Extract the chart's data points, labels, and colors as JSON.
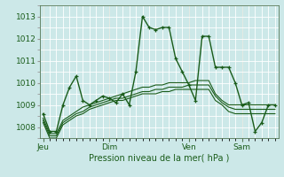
{
  "xlabel": "Pression niveau de la mer( hPa )",
  "ylim": [
    1007.5,
    1013.5
  ],
  "yticks": [
    1008,
    1009,
    1010,
    1011,
    1012,
    1013
  ],
  "bg_color": "#cce8e8",
  "grid_color": "#ffffff",
  "line_color": "#1a5c1a",
  "day_labels": [
    "Jeu",
    "Dim",
    "Ven",
    "Sam"
  ],
  "day_positions": [
    0,
    10,
    22,
    30
  ],
  "n_points": 36,
  "series0": [
    1008.6,
    1007.8,
    1007.8,
    1009.0,
    1009.8,
    1010.3,
    1009.2,
    1009.0,
    1009.2,
    1009.4,
    1009.3,
    1009.1,
    1009.5,
    1009.0,
    1010.5,
    1013.0,
    1012.5,
    1012.4,
    1012.5,
    1012.5,
    1011.1,
    1010.5,
    1009.9,
    1009.2,
    1012.1,
    1012.1,
    1010.7,
    1010.7,
    1010.7,
    1010.0,
    1009.0,
    1009.1,
    1007.8,
    1008.2,
    1009.0,
    1009.0
  ],
  "series1": [
    1008.4,
    1007.7,
    1007.7,
    1008.3,
    1008.5,
    1008.7,
    1008.9,
    1009.0,
    1009.1,
    1009.2,
    1009.3,
    1009.4,
    1009.5,
    1009.6,
    1009.7,
    1009.8,
    1009.8,
    1009.9,
    1009.9,
    1010.0,
    1010.0,
    1010.0,
    1010.0,
    1010.1,
    1010.1,
    1010.1,
    1009.5,
    1009.2,
    1009.0,
    1009.0,
    1009.0,
    1009.0,
    1009.0,
    1009.0,
    1009.0,
    1009.0
  ],
  "series2": [
    1008.3,
    1007.6,
    1007.6,
    1008.2,
    1008.4,
    1008.6,
    1008.7,
    1008.9,
    1009.0,
    1009.1,
    1009.2,
    1009.3,
    1009.3,
    1009.4,
    1009.5,
    1009.6,
    1009.6,
    1009.7,
    1009.7,
    1009.8,
    1009.8,
    1009.8,
    1009.9,
    1009.9,
    1009.9,
    1009.9,
    1009.4,
    1009.1,
    1008.9,
    1008.8,
    1008.8,
    1008.8,
    1008.8,
    1008.8,
    1008.8,
    1008.8
  ],
  "series3": [
    1008.2,
    1007.5,
    1007.5,
    1008.1,
    1008.3,
    1008.5,
    1008.6,
    1008.8,
    1008.9,
    1009.0,
    1009.1,
    1009.2,
    1009.2,
    1009.3,
    1009.4,
    1009.5,
    1009.5,
    1009.5,
    1009.6,
    1009.6,
    1009.7,
    1009.7,
    1009.7,
    1009.7,
    1009.7,
    1009.7,
    1009.2,
    1009.0,
    1008.7,
    1008.6,
    1008.6,
    1008.6,
    1008.6,
    1008.6,
    1008.6,
    1008.6
  ]
}
